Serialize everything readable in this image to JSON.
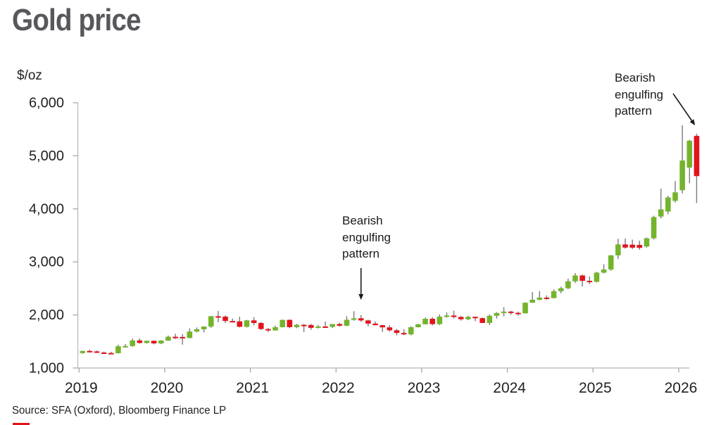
{
  "title": "Gold price",
  "unit_label": "$/oz",
  "source_text": "Source: SFA (Oxford), Bloomberg Finance LP",
  "colors": {
    "up_candle": "#74b42c",
    "down_candle": "#e3131b",
    "wick": "#7b7b7b",
    "axis_line": "#c2c2c2",
    "tick_mark": "#a8a8a8",
    "axis_text": "#1f2023",
    "title_text": "#57585c",
    "annotation_text": "#1a1a1a"
  },
  "chart_data": {
    "type": "candlestick",
    "title": "Gold price",
    "ylabel": "$/oz",
    "ylim": [
      1000,
      6000
    ],
    "yticks": [
      1000,
      2000,
      3000,
      4000,
      5000,
      6000
    ],
    "yticklabels": [
      "1,000",
      "2,000",
      "3,000",
      "4,000",
      "5,000",
      "6,000"
    ],
    "xticklabels": [
      "2019",
      "2020",
      "2021",
      "2022",
      "2023",
      "2024",
      "2025",
      "2026"
    ],
    "interval": "monthly",
    "grid": false,
    "legend": "none",
    "annotations": [
      {
        "text": "Bearish engulfing pattern",
        "target_month": "2022-04",
        "arrow": "vertical-down"
      },
      {
        "text": "Bearish engulfing pattern",
        "target_month": "2026-03",
        "arrow": "diagonal-down-right"
      }
    ],
    "candles_columns": [
      "month",
      "open",
      "high",
      "low",
      "close"
    ],
    "candles": [
      [
        "2019-01",
        1282,
        1326,
        1270,
        1321
      ],
      [
        "2019-02",
        1321,
        1346,
        1302,
        1313
      ],
      [
        "2019-03",
        1313,
        1330,
        1281,
        1292
      ],
      [
        "2019-04",
        1292,
        1310,
        1266,
        1283
      ],
      [
        "2019-05",
        1283,
        1306,
        1269,
        1278
      ],
      [
        "2019-06",
        1278,
        1439,
        1275,
        1409
      ],
      [
        "2019-07",
        1409,
        1453,
        1382,
        1414
      ],
      [
        "2019-08",
        1414,
        1555,
        1400,
        1520
      ],
      [
        "2019-09",
        1520,
        1557,
        1459,
        1472
      ],
      [
        "2019-10",
        1472,
        1518,
        1459,
        1513
      ],
      [
        "2019-11",
        1513,
        1517,
        1445,
        1464
      ],
      [
        "2019-12",
        1464,
        1525,
        1450,
        1517
      ],
      [
        "2020-01",
        1517,
        1611,
        1510,
        1589
      ],
      [
        "2020-02",
        1589,
        1645,
        1545,
        1585
      ],
      [
        "2020-03",
        1585,
        1640,
        1440,
        1565
      ],
      [
        "2020-04",
        1565,
        1747,
        1560,
        1687
      ],
      [
        "2020-05",
        1687,
        1765,
        1670,
        1730
      ],
      [
        "2020-06",
        1730,
        1786,
        1671,
        1781
      ],
      [
        "2020-07",
        1781,
        1981,
        1757,
        1976
      ],
      [
        "2020-08",
        1976,
        2075,
        1863,
        1968
      ],
      [
        "2020-09",
        1968,
        1992,
        1849,
        1886
      ],
      [
        "2020-10",
        1886,
        1934,
        1860,
        1879
      ],
      [
        "2020-11",
        1879,
        1966,
        1765,
        1777
      ],
      [
        "2020-12",
        1777,
        1906,
        1762,
        1898
      ],
      [
        "2021-01",
        1898,
        1959,
        1804,
        1848
      ],
      [
        "2021-02",
        1848,
        1871,
        1717,
        1734
      ],
      [
        "2021-03",
        1734,
        1755,
        1677,
        1708
      ],
      [
        "2021-04",
        1708,
        1798,
        1706,
        1769
      ],
      [
        "2021-05",
        1769,
        1913,
        1765,
        1907
      ],
      [
        "2021-06",
        1907,
        1916,
        1750,
        1770
      ],
      [
        "2021-07",
        1770,
        1834,
        1750,
        1814
      ],
      [
        "2021-08",
        1814,
        1832,
        1677,
        1810
      ],
      [
        "2021-09",
        1810,
        1834,
        1721,
        1757
      ],
      [
        "2021-10",
        1757,
        1813,
        1746,
        1783
      ],
      [
        "2021-11",
        1783,
        1877,
        1759,
        1775
      ],
      [
        "2021-12",
        1775,
        1831,
        1753,
        1829
      ],
      [
        "2022-01",
        1829,
        1853,
        1780,
        1797
      ],
      [
        "2022-02",
        1797,
        1974,
        1788,
        1909
      ],
      [
        "2022-03",
        1909,
        2070,
        1890,
        1937
      ],
      [
        "2022-04",
        1937,
        1998,
        1872,
        1897
      ],
      [
        "2022-05",
        1897,
        1910,
        1787,
        1837
      ],
      [
        "2022-06",
        1837,
        1880,
        1805,
        1807
      ],
      [
        "2022-07",
        1807,
        1814,
        1681,
        1766
      ],
      [
        "2022-08",
        1766,
        1808,
        1688,
        1711
      ],
      [
        "2022-09",
        1711,
        1735,
        1615,
        1661
      ],
      [
        "2022-10",
        1661,
        1730,
        1617,
        1634
      ],
      [
        "2022-11",
        1634,
        1787,
        1616,
        1769
      ],
      [
        "2022-12",
        1769,
        1833,
        1765,
        1824
      ],
      [
        "2023-01",
        1824,
        1949,
        1823,
        1928
      ],
      [
        "2023-02",
        1928,
        1960,
        1804,
        1827
      ],
      [
        "2023-03",
        1827,
        2010,
        1809,
        1969
      ],
      [
        "2023-04",
        1969,
        2048,
        1949,
        1990
      ],
      [
        "2023-05",
        1990,
        2081,
        1932,
        1962
      ],
      [
        "2023-06",
        1962,
        1983,
        1893,
        1919
      ],
      [
        "2023-07",
        1919,
        1987,
        1902,
        1965
      ],
      [
        "2023-08",
        1965,
        1972,
        1885,
        1940
      ],
      [
        "2023-09",
        1940,
        1953,
        1848,
        1849
      ],
      [
        "2023-10",
        1849,
        2009,
        1810,
        1984
      ],
      [
        "2023-11",
        1984,
        2052,
        1932,
        2036
      ],
      [
        "2023-12",
        2036,
        2146,
        1973,
        2063
      ],
      [
        "2024-01",
        2063,
        2078,
        2002,
        2040
      ],
      [
        "2024-02",
        2040,
        2065,
        1985,
        2030
      ],
      [
        "2024-03",
        2030,
        2236,
        2028,
        2230
      ],
      [
        "2024-04",
        2230,
        2432,
        2228,
        2286
      ],
      [
        "2024-05",
        2286,
        2450,
        2277,
        2327
      ],
      [
        "2024-06",
        2327,
        2369,
        2287,
        2318
      ],
      [
        "2024-07",
        2318,
        2483,
        2314,
        2448
      ],
      [
        "2024-08",
        2448,
        2531,
        2410,
        2503
      ],
      [
        "2024-09",
        2503,
        2685,
        2485,
        2635
      ],
      [
        "2024-10",
        2635,
        2790,
        2604,
        2744
      ],
      [
        "2024-11",
        2744,
        2762,
        2537,
        2643
      ],
      [
        "2024-12",
        2643,
        2726,
        2583,
        2625
      ],
      [
        "2025-01",
        2625,
        2813,
        2614,
        2798
      ],
      [
        "2025-02",
        2798,
        2956,
        2780,
        2858
      ],
      [
        "2025-03",
        2858,
        3128,
        2832,
        3124
      ],
      [
        "2025-04",
        3124,
        3435,
        3055,
        3330
      ],
      [
        "2025-05",
        3330,
        3440,
        3250,
        3270
      ],
      [
        "2025-06",
        3325,
        3420,
        3240,
        3268
      ],
      [
        "2025-07",
        3320,
        3400,
        3230,
        3265
      ],
      [
        "2025-08",
        3290,
        3460,
        3268,
        3445
      ],
      [
        "2025-09",
        3445,
        3870,
        3420,
        3845
      ],
      [
        "2025-10",
        3855,
        4380,
        3820,
        3990
      ],
      [
        "2025-11",
        3950,
        4245,
        3900,
        4215
      ],
      [
        "2025-12",
        4151,
        4524,
        4120,
        4311
      ],
      [
        "2026-01",
        4351,
        5575,
        4290,
        4910
      ],
      [
        "2026-02",
        4777,
        5300,
        4484,
        5283
      ],
      [
        "2026-03",
        5375,
        5415,
        4110,
        4617
      ]
    ]
  }
}
